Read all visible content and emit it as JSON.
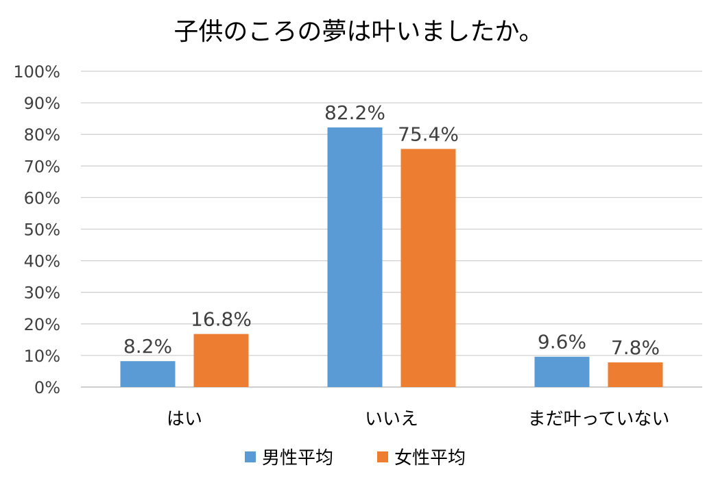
{
  "chart_data": {
    "type": "bar",
    "title": "子供のころの夢は叶いましたか。",
    "categories": [
      "はい",
      "いいえ",
      "まだ叶っていない"
    ],
    "series": [
      {
        "name": "男性平均",
        "values": [
          8.2,
          82.2,
          9.6
        ],
        "labels": [
          "8.2%",
          "82.2%",
          "9.6%"
        ],
        "color": "#5B9BD5"
      },
      {
        "name": "女性平均",
        "values": [
          16.8,
          75.4,
          7.8
        ],
        "labels": [
          "16.8%",
          "75.4%",
          "7.8%"
        ],
        "color": "#ED7D31"
      }
    ],
    "ylim": [
      0,
      100
    ],
    "yticks": [
      "0%",
      "10%",
      "20%",
      "30%",
      "40%",
      "50%",
      "60%",
      "70%",
      "80%",
      "90%",
      "100%"
    ],
    "grid": true,
    "legend_position": "bottom"
  }
}
